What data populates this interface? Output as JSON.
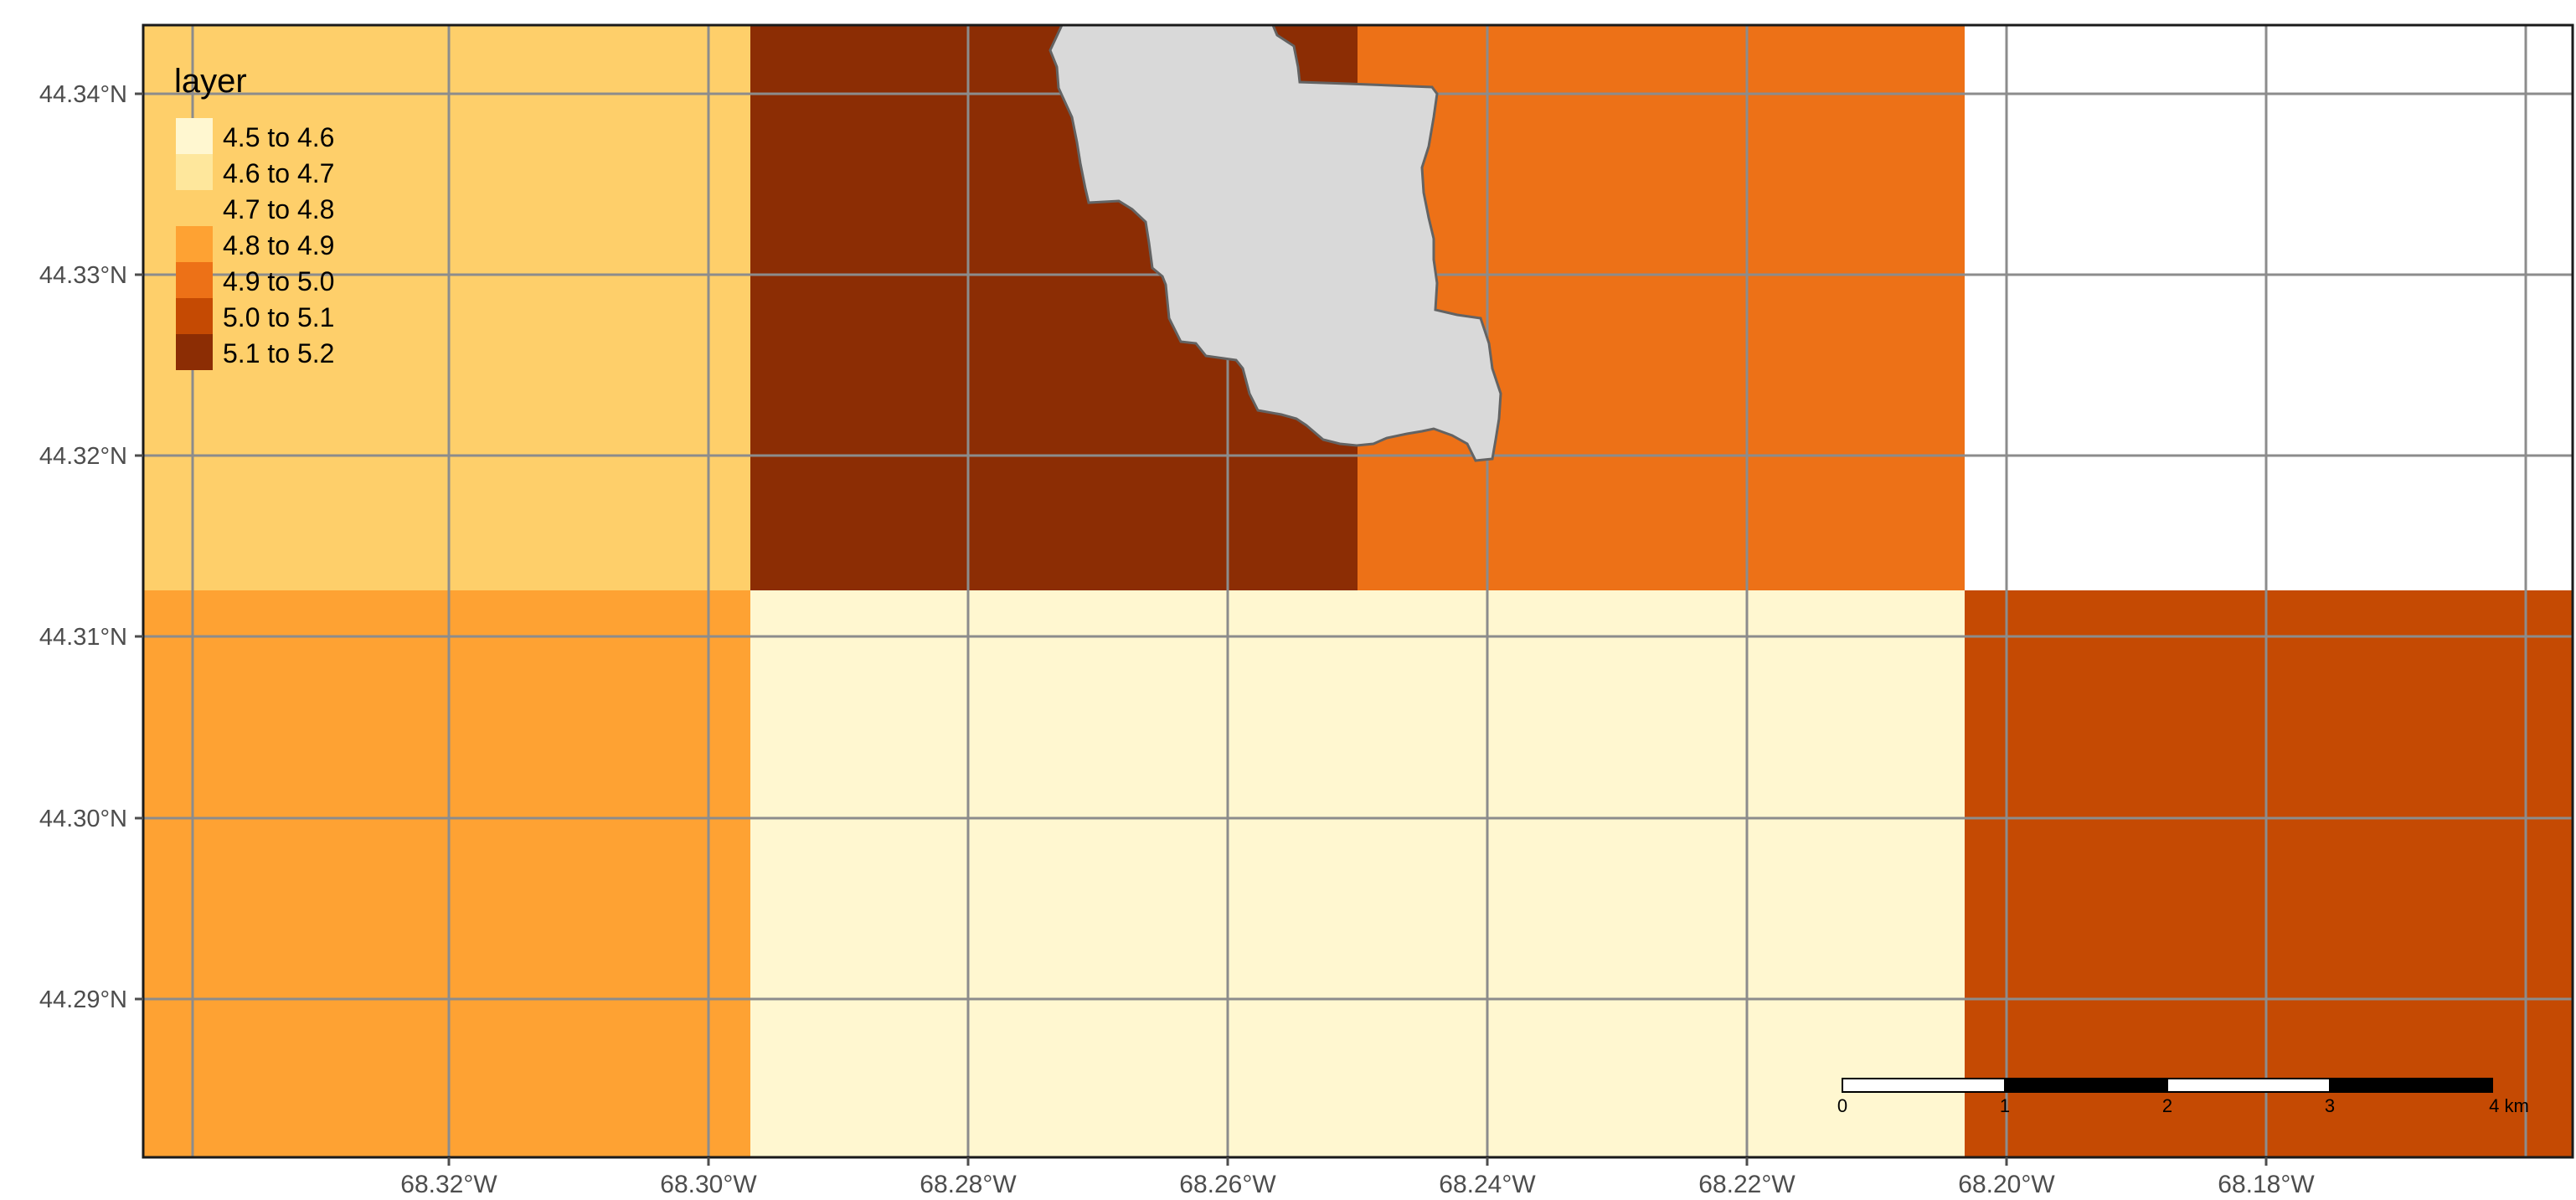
{
  "legend": {
    "title": "layer",
    "items": [
      {
        "label": "4.5 to 4.6",
        "color": "#FFF7D0"
      },
      {
        "label": "4.6 to 4.7",
        "color": "#FEE79C"
      },
      {
        "label": "4.7 to 4.8",
        "color": "#FECF6A"
      },
      {
        "label": "4.8 to 4.9",
        "color": "#FEA233"
      },
      {
        "label": "4.9 to 5.0",
        "color": "#ED7117"
      },
      {
        "label": "5.0 to 5.1",
        "color": "#C54A03"
      },
      {
        "label": "5.1 to 5.2",
        "color": "#8C2D04"
      }
    ]
  },
  "axes": {
    "lon_labels": [
      "68.32°W",
      "68.30°W",
      "68.28°W",
      "68.26°W",
      "68.24°W",
      "68.22°W",
      "68.20°W",
      "68.18°W"
    ],
    "lat_labels": [
      "44.34°N",
      "44.33°N",
      "44.32°N",
      "44.31°N",
      "44.30°N",
      "44.29°N"
    ]
  },
  "raster": {
    "rows": [
      [
        "4.7 to 4.8",
        "5.1 to 5.2",
        "4.9 to 5.0",
        null
      ],
      [
        "4.8 to 4.9",
        "4.5 to 4.6",
        "4.5 to 4.6",
        "5.0 to 5.1"
      ]
    ]
  },
  "polygon": {
    "fill": "#D9D9D9",
    "stroke": "#636363"
  },
  "scalebar": {
    "labels": [
      "0",
      "1",
      "2",
      "3",
      "4 km"
    ]
  },
  "colors": {
    "grid": "#8C8C8C",
    "frame": "#1A1A1A",
    "text": "#4D4D4D",
    "background": "#FFFFFF"
  }
}
